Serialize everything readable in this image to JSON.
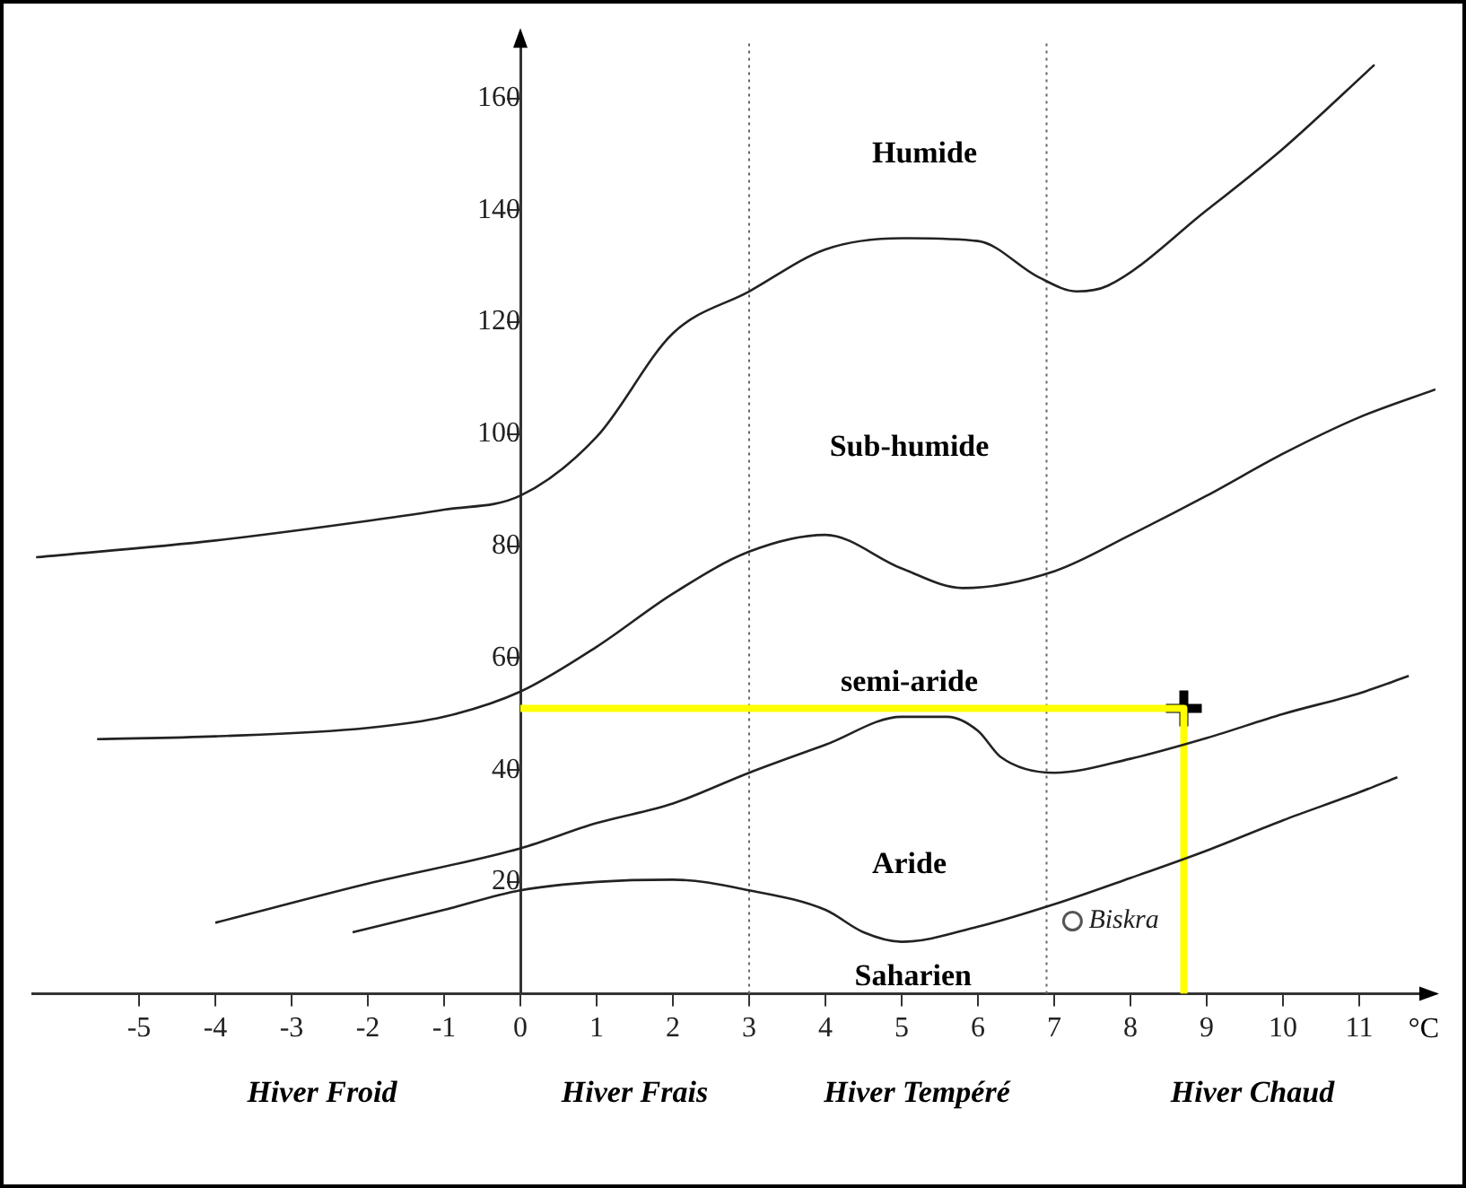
{
  "chart_data": {
    "type": "line",
    "xlabel": "°C",
    "xlim": [
      -6.4,
      12
    ],
    "ylim": [
      0,
      170
    ],
    "xticks": [
      -5,
      -4,
      -3,
      -2,
      -1,
      0,
      1,
      2,
      3,
      4,
      5,
      6,
      7,
      8,
      9,
      10,
      11
    ],
    "yticks": [
      20,
      40,
      60,
      80,
      100,
      120,
      140,
      160
    ],
    "marker": "none",
    "line_style": "solid",
    "series": [
      {
        "color": "#222222",
        "x": [
          -6.35,
          -4,
          -2,
          -1,
          0,
          1,
          2,
          3,
          4,
          5,
          6,
          6.8,
          7.3,
          7.7,
          9,
          10,
          11.2
        ],
        "values": [
          78,
          81,
          84.5,
          86.5,
          89,
          99.5,
          118,
          125.5,
          133,
          135,
          134.5,
          128,
          125.5,
          126.5,
          140,
          151,
          166
        ]
      },
      {
        "color": "#222222",
        "x": [
          -5.55,
          -4,
          -2,
          -1,
          0,
          1,
          2,
          3,
          4,
          5,
          5.8,
          7,
          8,
          9,
          10,
          11,
          12
        ],
        "values": [
          45.5,
          46,
          47.5,
          49.5,
          54,
          62,
          71.5,
          79,
          82,
          76,
          72.5,
          75.5,
          82,
          89,
          96.5,
          103,
          108
        ]
      },
      {
        "color": "#222222",
        "x": [
          -4,
          -2,
          0,
          1,
          2,
          3,
          4,
          5,
          5.6,
          6,
          6.3,
          7,
          8,
          9,
          10,
          11,
          11.65
        ],
        "values": [
          12.7,
          19.7,
          26,
          30.5,
          34,
          39.5,
          44.5,
          49.5,
          49.5,
          47,
          42.3,
          39.5,
          42,
          45.7,
          50,
          53.7,
          56.8
        ]
      },
      {
        "color": "#222222",
        "x": [
          -2.2,
          -1,
          0,
          1,
          2,
          3,
          4,
          4.5,
          5,
          6,
          7,
          8,
          9,
          10,
          11,
          11.5
        ],
        "values": [
          11,
          15,
          18.5,
          20,
          20.4,
          18.5,
          15,
          11,
          9.3,
          12,
          16,
          20.7,
          25.6,
          31,
          36,
          38.7
        ]
      },
      {
        "color": "#ffff00",
        "x": [
          0,
          8.7,
          8.7
        ],
        "values": [
          51,
          51,
          0
        ]
      },
      {
        "type": "scatter",
        "marker": "cross",
        "color": "#000000",
        "x": [
          8.7
        ],
        "values": [
          51
        ]
      },
      {
        "type": "scatter",
        "marker": "circle",
        "name": "Biskra",
        "color": "#555555",
        "x": [
          7.24
        ],
        "values": [
          13
        ]
      }
    ],
    "ref_lines": [
      {
        "axis": "x",
        "value": 3,
        "line_style": "dotted",
        "color": "#666666"
      },
      {
        "axis": "x",
        "value": 6.9,
        "line_style": "dotted",
        "color": "#666666"
      }
    ],
    "annotations": [
      "Humide",
      "Sub-humide",
      "semi-aride",
      "Aride",
      "Saharien",
      "Hiver Froid",
      "Hiver Frais",
      "Hiver Tempéré",
      "Hiver Chaud"
    ]
  }
}
